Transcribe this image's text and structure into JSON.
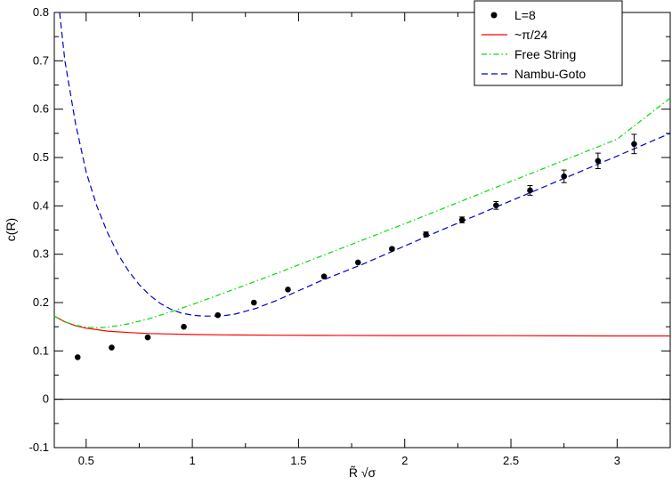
{
  "chart_data": {
    "type": "line",
    "xlabel": "R̃ √σ",
    "ylabel": "c(R)",
    "xlim": [
      0.35,
      3.25
    ],
    "ylim": [
      -0.1,
      0.8
    ],
    "grid": false,
    "legend_position": "top-right",
    "x_ticks": [
      0.5,
      1,
      1.5,
      2,
      2.5,
      3
    ],
    "x_tick_labels": [
      "0.5",
      "1",
      "1.5",
      "2",
      "2.5",
      "3"
    ],
    "y_ticks": [
      -0.1,
      0,
      0.1,
      0.2,
      0.3,
      0.4,
      0.5,
      0.6,
      0.7,
      0.8
    ],
    "y_tick_labels": [
      "-0.1",
      "0",
      "0.1",
      "0.2",
      "0.3",
      "0.4",
      "0.5",
      "0.6",
      "0.7",
      "0.8"
    ],
    "zero_line": 0,
    "series": [
      {
        "name": "L=8",
        "kind": "points",
        "color": "#000000",
        "x": [
          0.46,
          0.62,
          0.79,
          0.96,
          1.12,
          1.29,
          1.45,
          1.62,
          1.78,
          1.94,
          2.1,
          2.27,
          2.43,
          2.59,
          2.75,
          2.91,
          3.08
        ],
        "y": [
          0.087,
          0.107,
          0.128,
          0.15,
          0.174,
          0.2,
          0.227,
          0.254,
          0.283,
          0.311,
          0.341,
          0.371,
          0.401,
          0.432,
          0.461,
          0.493,
          0.528
        ],
        "err": [
          0.002,
          0.002,
          0.002,
          0.002,
          0.002,
          0.002,
          0.002,
          0.002,
          0.002,
          0.003,
          0.005,
          0.006,
          0.008,
          0.01,
          0.013,
          0.016,
          0.02
        ]
      },
      {
        "name": "~π/24",
        "kind": "line",
        "color": "#ff0000",
        "dash": "solid",
        "x": [
          0.35,
          0.4,
          0.45,
          0.5,
          0.55,
          0.6,
          0.7,
          0.8,
          0.9,
          1.0,
          1.2,
          1.4,
          1.6,
          2.0,
          2.5,
          3.0,
          3.25
        ],
        "y": [
          0.172,
          0.16,
          0.152,
          0.147,
          0.144,
          0.141,
          0.138,
          0.136,
          0.135,
          0.134,
          0.133,
          0.1325,
          0.132,
          0.1318,
          0.1315,
          0.131,
          0.131
        ]
      },
      {
        "name": "Free String",
        "kind": "line",
        "color": "#00dd00",
        "dash": "dashdot",
        "x": [
          0.35,
          0.4,
          0.45,
          0.5,
          0.55,
          0.6,
          0.7,
          0.8,
          0.9,
          1.0,
          1.2,
          1.4,
          1.6,
          1.8,
          2.0,
          2.2,
          2.4,
          2.6,
          2.8,
          3.0,
          3.25
        ],
        "y": [
          0.172,
          0.16,
          0.153,
          0.149,
          0.148,
          0.149,
          0.156,
          0.167,
          0.181,
          0.196,
          0.228,
          0.261,
          0.295,
          0.329,
          0.363,
          0.398,
          0.433,
          0.468,
          0.503,
          0.538,
          0.623
        ]
      },
      {
        "name": "Nambu-Goto",
        "kind": "line",
        "color": "#0000cc",
        "dash": "dashed",
        "x": [
          0.375,
          0.4,
          0.45,
          0.5,
          0.55,
          0.6,
          0.65,
          0.7,
          0.75,
          0.8,
          0.85,
          0.9,
          0.95,
          1.0,
          1.05,
          1.1,
          1.15,
          1.2,
          1.3,
          1.4,
          1.6,
          1.8,
          2.0,
          2.2,
          2.4,
          2.6,
          2.8,
          3.0,
          3.25
        ],
        "y": [
          0.8,
          0.7,
          0.57,
          0.47,
          0.4,
          0.345,
          0.3,
          0.265,
          0.237,
          0.215,
          0.198,
          0.186,
          0.178,
          0.174,
          0.172,
          0.172,
          0.173,
          0.176,
          0.188,
          0.205,
          0.244,
          0.279,
          0.317,
          0.355,
          0.392,
          0.429,
          0.466,
          0.503,
          0.55
        ]
      }
    ]
  }
}
